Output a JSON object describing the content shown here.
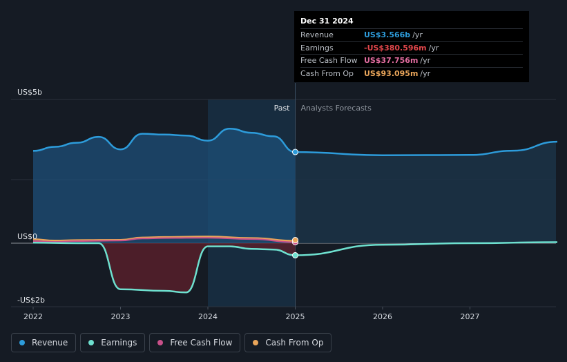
{
  "tooltip": {
    "date": "Dec 31 2024",
    "rows": [
      {
        "label": "Revenue",
        "value": "US$3.566b",
        "unit": "/yr",
        "color": "#2d9cdb"
      },
      {
        "label": "Earnings",
        "value": "-US$380.596m",
        "unit": "/yr",
        "color": "#e4474b"
      },
      {
        "label": "Free Cash Flow",
        "value": "US$37.756m",
        "unit": "/yr",
        "color": "#e06c9f"
      },
      {
        "label": "Cash From Op",
        "value": "US$93.095m",
        "unit": "/yr",
        "color": "#e9a55a"
      }
    ]
  },
  "legend": [
    {
      "label": "Revenue",
      "color": "#2d9cdb"
    },
    {
      "label": "Earnings",
      "color": "#6ee0cf"
    },
    {
      "label": "Free Cash Flow",
      "color": "#c9508a"
    },
    {
      "label": "Cash From Op",
      "color": "#e9a55a"
    }
  ],
  "chart_data": {
    "type": "line",
    "y_tick_labels": [
      "US$5b",
      "US$0",
      "-US$2b"
    ],
    "y_ticks": [
      5,
      0,
      -2
    ],
    "ylim": [
      -2,
      5
    ],
    "xlim": [
      2022,
      2028
    ],
    "x_tick_labels": [
      "2022",
      "2023",
      "2024",
      "2025",
      "2026",
      "2027"
    ],
    "x_ticks": [
      2022,
      2023,
      2024,
      2025,
      2026,
      2027
    ],
    "section_labels": {
      "past": "Past",
      "forecast": "Analysts Forecasts"
    },
    "forecast_start": 2025,
    "series": [
      {
        "name": "Revenue",
        "color": "#2d9cdb",
        "x": [
          2022,
          2022.25,
          2022.5,
          2022.75,
          2023,
          2023.25,
          2023.5,
          2023.75,
          2024,
          2024.25,
          2024.5,
          2024.75,
          2025
        ],
        "y": [
          3.61,
          3.77,
          3.93,
          4.16,
          3.67,
          4.28,
          4.25,
          4.21,
          4.01,
          4.48,
          4.32,
          4.18,
          3.566
        ],
        "forecast_x": [
          2025,
          2026,
          2027,
          2027.5,
          2028
        ],
        "forecast_y": [
          3.566,
          3.44,
          3.45,
          3.62,
          3.97
        ]
      },
      {
        "name": "Earnings",
        "color": "#6ee0cf",
        "x": [
          2022,
          2022.5,
          2022.75,
          2023,
          2023.5,
          2023.75,
          2024,
          2024.25,
          2024.5,
          2024.75,
          2025
        ],
        "y": [
          0.02,
          0.0,
          0.0,
          -1.45,
          -1.5,
          -1.55,
          -0.1,
          -0.1,
          -0.18,
          -0.2,
          -0.381
        ],
        "forecast_x": [
          2025,
          2026,
          2027,
          2028
        ],
        "forecast_y": [
          -0.381,
          -0.05,
          0.0,
          0.04
        ]
      },
      {
        "name": "Free Cash Flow",
        "color": "#c9508a",
        "x": [
          2022,
          2022.25,
          2022.5,
          2023,
          2023.25,
          2023.5,
          2024,
          2024.5,
          2025
        ],
        "y": [
          0.08,
          0.05,
          0.08,
          0.1,
          0.18,
          0.2,
          0.21,
          0.16,
          0.038
        ]
      },
      {
        "name": "Cash From Op",
        "color": "#e9a55a",
        "x": [
          2022,
          2022.25,
          2022.5,
          2023,
          2023.25,
          2023.5,
          2024,
          2024.5,
          2025
        ],
        "y": [
          0.15,
          0.1,
          0.12,
          0.13,
          0.22,
          0.24,
          0.26,
          0.2,
          0.093
        ]
      }
    ]
  }
}
